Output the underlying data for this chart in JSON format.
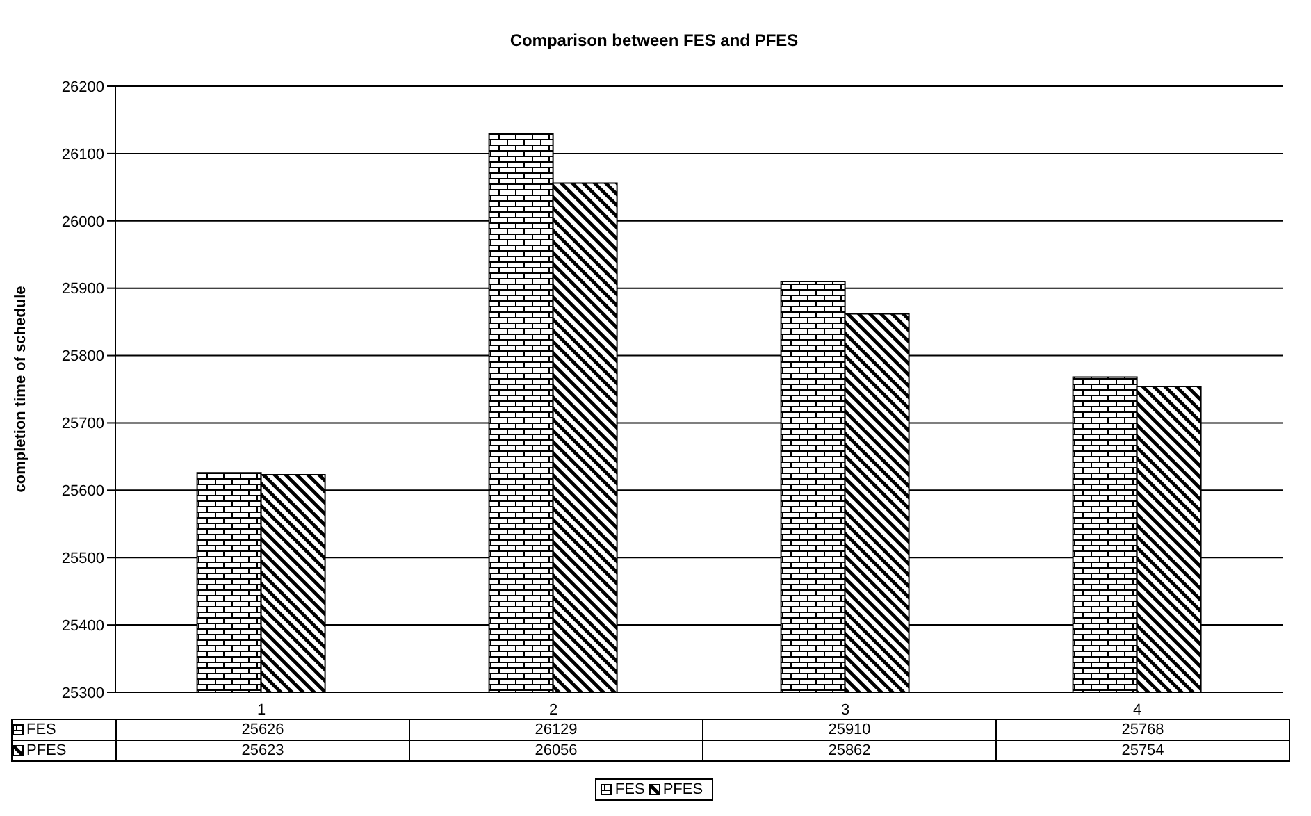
{
  "chart_data": {
    "type": "bar",
    "title": "Comparison between FES and PFES",
    "ylabel": "completion time of schedule",
    "categories": [
      "1",
      "2",
      "3",
      "4"
    ],
    "series": [
      {
        "name": "FES",
        "color": "#000000",
        "values": [
          25626,
          26129,
          25910,
          25768
        ]
      },
      {
        "name": "PFES",
        "color": "#000000",
        "values": [
          25623,
          26056,
          25862,
          25754
        ]
      }
    ],
    "ylim": [
      25300,
      26200
    ],
    "yticks": [
      25300,
      25400,
      25500,
      25600,
      25700,
      25800,
      25900,
      26000,
      26100,
      26200
    ],
    "grid": "y",
    "legend": "bottom",
    "data_labels": true
  }
}
